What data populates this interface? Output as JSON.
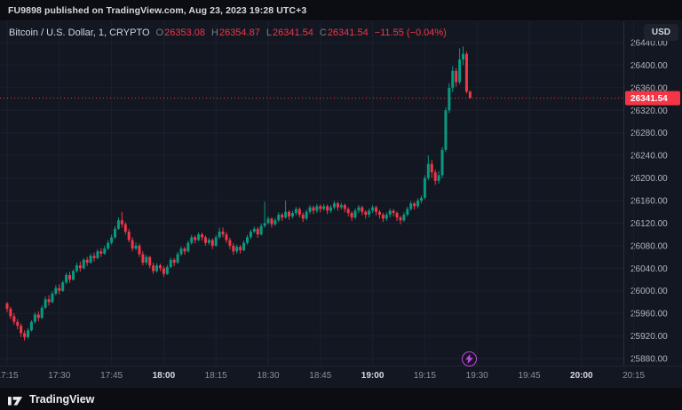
{
  "frame": {
    "publish_text": "FU9898 published on TradingView.com, Aug 23, 2023 19:28 UTC+3",
    "currency_button": "USD",
    "brand": "TradingView"
  },
  "legend": {
    "symbol": "Bitcoin / U.S. Dollar, 1, CRYPTO",
    "ohlc": [
      {
        "label": "O",
        "value": "26353.08"
      },
      {
        "label": "H",
        "value": "26354.87"
      },
      {
        "label": "L",
        "value": "26341.54"
      },
      {
        "label": "C",
        "value": "26341.54"
      }
    ],
    "change": "−11.55 (−0.04%)"
  },
  "price_axis": {
    "labels": [
      "26440.00",
      "26400.00",
      "26360.00",
      "26320.00",
      "26280.00",
      "26240.00",
      "26200.00",
      "26160.00",
      "26120.00",
      "26080.00",
      "26040.00",
      "26000.00",
      "25960.00",
      "25920.00",
      "25880.00"
    ],
    "last_price_label": "26341.54"
  },
  "time_axis": {
    "ticks": [
      {
        "label": "17:15",
        "offset_min": 0,
        "major": false
      },
      {
        "label": "17:30",
        "offset_min": 15,
        "major": false
      },
      {
        "label": "17:45",
        "offset_min": 30,
        "major": false
      },
      {
        "label": "18:00",
        "offset_min": 45,
        "major": true
      },
      {
        "label": "18:15",
        "offset_min": 60,
        "major": false
      },
      {
        "label": "18:30",
        "offset_min": 75,
        "major": false
      },
      {
        "label": "18:45",
        "offset_min": 90,
        "major": false
      },
      {
        "label": "19:00",
        "offset_min": 105,
        "major": true
      },
      {
        "label": "19:15",
        "offset_min": 120,
        "major": false
      },
      {
        "label": "19:30",
        "offset_min": 135,
        "major": false
      },
      {
        "label": "19:45",
        "offset_min": 150,
        "major": false
      },
      {
        "label": "20:00",
        "offset_min": 165,
        "major": true
      },
      {
        "label": "20:15",
        "offset_min": 180,
        "major": false
      }
    ]
  },
  "colors": {
    "background": "#131722",
    "frame_bg": "#0b0d12",
    "up": "#089981",
    "down": "#f23645",
    "grid": "#1c202e",
    "axis_text": "#b2b5be",
    "separator": "#2a2e39",
    "marker": "#b84dd9"
  },
  "chart_data": {
    "type": "candlestick",
    "symbol": "Bitcoin / U.S. Dollar",
    "exchange": "CRYPTO",
    "interval_minutes": 1,
    "start_time": "17:15",
    "end_time": "19:28",
    "last_price": 26341.54,
    "change": -11.55,
    "change_pct": -0.04,
    "ylim": [
      25870,
      26470
    ],
    "price_gridlines": [
      26440,
      26400,
      26360,
      26320,
      26280,
      26240,
      26200,
      26160,
      26120,
      26080,
      26040,
      26000,
      25960,
      25920,
      25880
    ],
    "candles": [
      [
        25978,
        25980,
        25962,
        25968
      ],
      [
        25968,
        25972,
        25950,
        25955
      ],
      [
        25955,
        25960,
        25940,
        25945
      ],
      [
        25945,
        25950,
        25932,
        25938
      ],
      [
        25938,
        25942,
        25918,
        25925
      ],
      [
        25925,
        25930,
        25912,
        25918
      ],
      [
        25918,
        25934,
        25915,
        25930
      ],
      [
        25930,
        25948,
        25928,
        25945
      ],
      [
        25945,
        25962,
        25942,
        25958
      ],
      [
        25958,
        25964,
        25946,
        25952
      ],
      [
        25952,
        25974,
        25950,
        25970
      ],
      [
        25970,
        25990,
        25968,
        25985
      ],
      [
        25985,
        25992,
        25974,
        25980
      ],
      [
        25980,
        25999,
        25978,
        25995
      ],
      [
        25995,
        26010,
        25992,
        26005
      ],
      [
        26005,
        26012,
        25994,
        26000
      ],
      [
        26000,
        26018,
        25998,
        26015
      ],
      [
        26015,
        26032,
        26012,
        26028
      ],
      [
        26028,
        26034,
        26014,
        26020
      ],
      [
        26020,
        26038,
        26018,
        26035
      ],
      [
        26035,
        26050,
        26032,
        26045
      ],
      [
        26045,
        26052,
        26034,
        26040
      ],
      [
        26040,
        26058,
        26038,
        26055
      ],
      [
        26055,
        26060,
        26044,
        26050
      ],
      [
        26050,
        26066,
        26048,
        26062
      ],
      [
        26062,
        26068,
        26052,
        26058
      ],
      [
        26058,
        26074,
        26056,
        26070
      ],
      [
        26070,
        26076,
        26060,
        26066
      ],
      [
        26066,
        26080,
        26064,
        26075
      ],
      [
        26075,
        26090,
        26072,
        26085
      ],
      [
        26085,
        26100,
        26082,
        26095
      ],
      [
        26095,
        26115,
        26092,
        26110
      ],
      [
        26110,
        26130,
        26108,
        26125
      ],
      [
        26125,
        26140,
        26112,
        26118
      ],
      [
        26118,
        26122,
        26100,
        26105
      ],
      [
        26105,
        26110,
        26086,
        26090
      ],
      [
        26090,
        26095,
        26070,
        26075
      ],
      [
        26075,
        26086,
        26072,
        26080
      ],
      [
        26080,
        26084,
        26060,
        26065
      ],
      [
        26065,
        26070,
        26045,
        26050
      ],
      [
        26050,
        26064,
        26046,
        26060
      ],
      [
        26060,
        26062,
        26040,
        26045
      ],
      [
        26045,
        26050,
        26030,
        26035
      ],
      [
        26035,
        26049,
        26032,
        26045
      ],
      [
        26045,
        26048,
        26035,
        26040
      ],
      [
        26040,
        26044,
        26025,
        26030
      ],
      [
        26030,
        26046,
        26028,
        26042
      ],
      [
        26042,
        26059,
        26040,
        26055
      ],
      [
        26055,
        26058,
        26044,
        26050
      ],
      [
        26050,
        26069,
        26048,
        26065
      ],
      [
        26065,
        26079,
        26062,
        26075
      ],
      [
        26075,
        26078,
        26064,
        26070
      ],
      [
        26070,
        26089,
        26068,
        26085
      ],
      [
        26085,
        26099,
        26082,
        26095
      ],
      [
        26095,
        26098,
        26084,
        26090
      ],
      [
        26090,
        26104,
        26088,
        26100
      ],
      [
        26100,
        26103,
        26089,
        26095
      ],
      [
        26095,
        26098,
        26080,
        26085
      ],
      [
        26085,
        26094,
        26082,
        26090
      ],
      [
        26090,
        26093,
        26074,
        26080
      ],
      [
        26080,
        26099,
        26078,
        26095
      ],
      [
        26095,
        26112,
        26092,
        26105
      ],
      [
        26105,
        26112,
        26095,
        26100
      ],
      [
        26100,
        26104,
        26085,
        26090
      ],
      [
        26090,
        26094,
        26074,
        26080
      ],
      [
        26080,
        26085,
        26064,
        26070
      ],
      [
        26070,
        26082,
        26066,
        26078
      ],
      [
        26078,
        26081,
        26066,
        26072
      ],
      [
        26072,
        26089,
        26070,
        26085
      ],
      [
        26085,
        26099,
        26082,
        26095
      ],
      [
        26095,
        26109,
        26092,
        26105
      ],
      [
        26105,
        26114,
        26102,
        26110
      ],
      [
        26110,
        26113,
        26094,
        26100
      ],
      [
        26100,
        26119,
        26098,
        26115
      ],
      [
        26115,
        26158,
        26112,
        26120
      ],
      [
        26120,
        26132,
        26118,
        26128
      ],
      [
        26128,
        26130,
        26112,
        26118
      ],
      [
        26118,
        26129,
        26115,
        26125
      ],
      [
        26125,
        26139,
        26122,
        26135
      ],
      [
        26135,
        26138,
        26124,
        26130
      ],
      [
        26130,
        26160,
        26128,
        26140
      ],
      [
        26140,
        26143,
        26126,
        26132
      ],
      [
        26132,
        26142,
        26128,
        26138
      ],
      [
        26138,
        26149,
        26134,
        26145
      ],
      [
        26145,
        26148,
        26130,
        26135
      ],
      [
        26135,
        26139,
        26122,
        26128
      ],
      [
        26128,
        26144,
        26125,
        26140
      ],
      [
        26140,
        26152,
        26136,
        26148
      ],
      [
        26148,
        26151,
        26136,
        26142
      ],
      [
        26142,
        26154,
        26138,
        26150
      ],
      [
        26150,
        26153,
        26139,
        26145
      ],
      [
        26145,
        26154,
        26142,
        26150
      ],
      [
        26150,
        26153,
        26136,
        26142
      ],
      [
        26142,
        26152,
        26138,
        26148
      ],
      [
        26148,
        26159,
        26144,
        26155
      ],
      [
        26155,
        26158,
        26142,
        26148
      ],
      [
        26148,
        26156,
        26144,
        26152
      ],
      [
        26152,
        26155,
        26139,
        26145
      ],
      [
        26145,
        26148,
        26132,
        26138
      ],
      [
        26138,
        26141,
        26124,
        26130
      ],
      [
        26130,
        26146,
        26127,
        26142
      ],
      [
        26142,
        26152,
        26138,
        26148
      ],
      [
        26148,
        26151,
        26134,
        26140
      ],
      [
        26140,
        26143,
        26128,
        26135
      ],
      [
        26135,
        26146,
        26130,
        26142
      ],
      [
        26142,
        26152,
        26138,
        26148
      ],
      [
        26148,
        26151,
        26134,
        26140
      ],
      [
        26140,
        26143,
        26128,
        26135
      ],
      [
        26135,
        26138,
        26122,
        26128
      ],
      [
        26128,
        26139,
        26124,
        26135
      ],
      [
        26135,
        26146,
        26130,
        26142
      ],
      [
        26142,
        26145,
        26132,
        26138
      ],
      [
        26138,
        26141,
        26124,
        26130
      ],
      [
        26130,
        26133,
        26118,
        26125
      ],
      [
        26125,
        26139,
        26122,
        26135
      ],
      [
        26135,
        26149,
        26132,
        26145
      ],
      [
        26145,
        26159,
        26142,
        26155
      ],
      [
        26155,
        26158,
        26144,
        26150
      ],
      [
        26150,
        26164,
        26146,
        26160
      ],
      [
        26160,
        26169,
        26155,
        26165
      ],
      [
        26165,
        26205,
        26162,
        26200
      ],
      [
        26200,
        26240,
        26196,
        26225
      ],
      [
        26225,
        26232,
        26200,
        26210
      ],
      [
        26210,
        26215,
        26188,
        26195
      ],
      [
        26195,
        26212,
        26190,
        26205
      ],
      [
        26205,
        26255,
        26200,
        26250
      ],
      [
        26250,
        26325,
        26246,
        26320
      ],
      [
        26320,
        26368,
        26315,
        26360
      ],
      [
        26360,
        26398,
        26352,
        26390
      ],
      [
        26390,
        26395,
        26362,
        26370
      ],
      [
        26370,
        26430,
        26366,
        26410
      ],
      [
        26410,
        26433,
        26400,
        26420
      ],
      [
        26420,
        26424,
        26350,
        26353.08
      ],
      [
        26353.08,
        26354.87,
        26341.54,
        26341.54
      ]
    ]
  }
}
